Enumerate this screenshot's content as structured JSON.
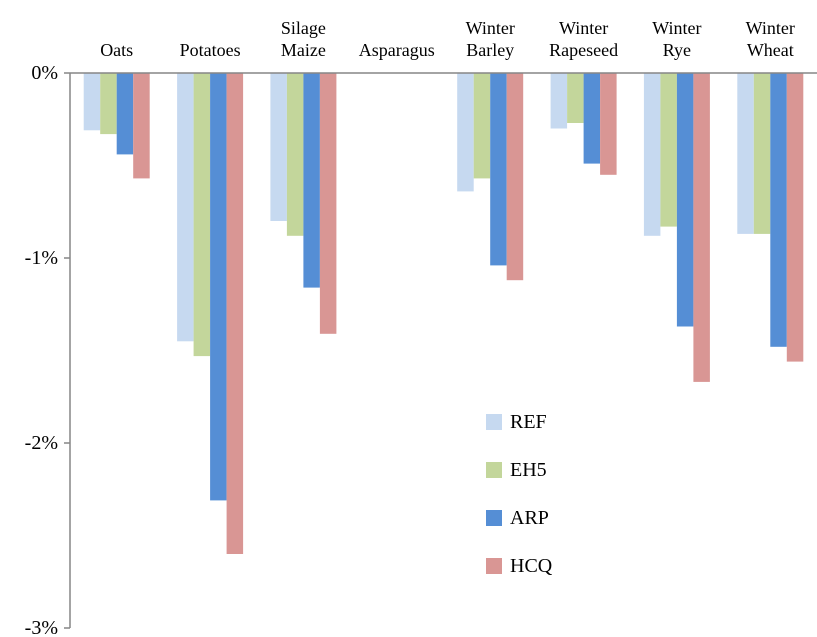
{
  "chart_data": {
    "type": "bar",
    "title": "",
    "xlabel": "",
    "ylabel": "",
    "x_axis_position": "top",
    "categories": [
      [
        "Oats"
      ],
      [
        "Potatoes"
      ],
      [
        "Silage",
        "Maize"
      ],
      [
        "Asparagus"
      ],
      [
        "Winter",
        "Barley"
      ],
      [
        "Winter",
        "Rapeseed"
      ],
      [
        "Winter",
        "Rye"
      ],
      [
        "Winter",
        "Wheat"
      ]
    ],
    "series": [
      {
        "name": "REF",
        "color": "#c6d9f0",
        "values": [
          -0.31,
          -1.45,
          -0.8,
          0,
          -0.64,
          -0.3,
          -0.88,
          -0.87
        ]
      },
      {
        "name": "EH5",
        "color": "#c3d69b",
        "values": [
          -0.33,
          -1.53,
          -0.88,
          0,
          -0.57,
          -0.27,
          -0.83,
          -0.87
        ]
      },
      {
        "name": "ARP",
        "color": "#558ed5",
        "values": [
          -0.44,
          -2.31,
          -1.16,
          0,
          -1.04,
          -0.49,
          -1.37,
          -1.48
        ]
      },
      {
        "name": "HCQ",
        "color": "#d99694",
        "values": [
          -0.57,
          -2.6,
          -1.41,
          0,
          -1.12,
          -0.55,
          -1.67,
          -1.56
        ]
      }
    ],
    "ylim": [
      -3,
      0
    ],
    "yticks": [
      0,
      -1,
      -2,
      -3
    ],
    "ytick_labels": [
      "0%",
      "-1%",
      "-2%",
      "-3%"
    ],
    "grid": false,
    "legend_position": "lower-middle"
  }
}
